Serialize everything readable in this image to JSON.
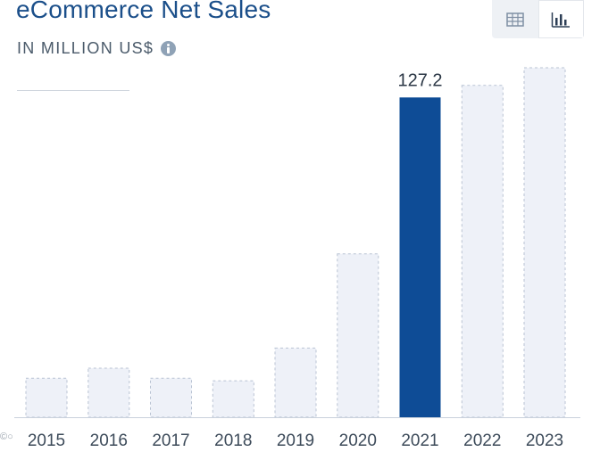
{
  "header": {
    "title": "eCommerce Net Sales",
    "subtitle": "IN MILLION US$"
  },
  "toolbar": {
    "table_icon": "table-icon",
    "chart_icon": "bar-chart-icon",
    "active_view": "chart"
  },
  "colors": {
    "highlight": "#0e4c96",
    "bar_fill": "#eef1f8",
    "bar_border": "#b9c3d3",
    "title": "#1b4f8a",
    "tick_text": "#3d4b5a"
  },
  "chart_data": {
    "type": "bar",
    "title": "eCommerce Net Sales",
    "subtitle": "IN MILLION US$",
    "categories": [
      "2015",
      "2016",
      "2017",
      "2018",
      "2019",
      "2020",
      "2021",
      "2022",
      "2023"
    ],
    "values": [
      15.5,
      19.5,
      15.5,
      14.5,
      27.5,
      65,
      127.2,
      132,
      139
    ],
    "highlighted_index": 6,
    "data_labels": {
      "6": "127.2"
    },
    "xlabel": "",
    "ylabel": "",
    "ylim": [
      0,
      150
    ],
    "grid": false,
    "legend": "none"
  }
}
